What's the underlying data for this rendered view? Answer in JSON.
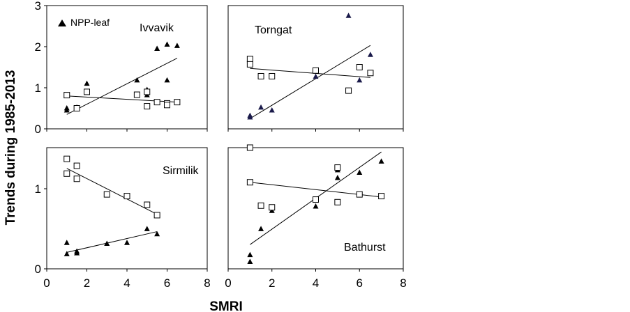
{
  "ylabel": "Trends during 1985-2013",
  "xlabel": "SMRI",
  "legend_label": "NPP-leaf",
  "x_ticks": [
    "0",
    "2",
    "4",
    "6",
    "8"
  ],
  "colors": {
    "leaf_marker": "#000000",
    "leaf_marker_torngat": "#1a1a4a",
    "square_marker": "#000000"
  },
  "chart_data": [
    {
      "type": "scatter",
      "site": "Ivvavik",
      "xlim": [
        0,
        8
      ],
      "ylim": [
        0,
        3
      ],
      "y_ticks": [
        "0",
        "1",
        "2",
        "3"
      ],
      "legend": "top-left",
      "series": [
        {
          "name": "NPP-leaf",
          "marker": "triangle",
          "x": [
            1,
            1,
            1.5,
            2,
            4.5,
            5,
            5,
            5.5,
            6,
            6,
            6.5
          ],
          "y": [
            0.45,
            0.5,
            0.52,
            1.1,
            1.18,
            0.95,
            0.82,
            1.95,
            2.05,
            1.18,
            2.02
          ],
          "fit": [
            [
              1,
              0.35
            ],
            [
              6.5,
              1.72
            ]
          ]
        },
        {
          "marker": "square",
          "x": [
            1,
            1.5,
            2,
            4.5,
            5,
            5,
            5.5,
            6,
            6,
            6.5
          ],
          "y": [
            0.82,
            0.5,
            0.9,
            0.83,
            0.9,
            0.55,
            0.65,
            0.62,
            0.58,
            0.65
          ],
          "fit": [
            [
              1,
              0.8
            ],
            [
              6.5,
              0.65
            ]
          ]
        }
      ]
    },
    {
      "type": "scatter",
      "site": "Torngat",
      "xlim": [
        0,
        8
      ],
      "ylim": [
        0,
        3
      ],
      "y_ticks": [],
      "series": [
        {
          "name": "NPP-leaf",
          "marker": "triangle",
          "x": [
            1,
            1,
            1.5,
            2,
            4,
            5.5,
            6,
            6.5
          ],
          "y": [
            0.28,
            0.32,
            0.52,
            0.45,
            1.27,
            2.75,
            1.18,
            1.8
          ],
          "fit": [
            [
              1,
              0.25
            ],
            [
              6.5,
              2.03
            ]
          ]
        },
        {
          "marker": "square",
          "x": [
            1,
            1,
            1.5,
            2,
            4,
            5.5,
            6,
            6.5
          ],
          "y": [
            1.7,
            1.57,
            1.28,
            1.28,
            1.42,
            0.93,
            1.5,
            1.36
          ],
          "fit": [
            [
              1,
              1.47
            ],
            [
              6.5,
              1.25
            ]
          ]
        }
      ]
    },
    {
      "type": "scatter",
      "site": "Sirmilik",
      "xlim": [
        0,
        8
      ],
      "ylim": [
        0,
        1.4
      ],
      "y_ticks": [
        "0",
        "1"
      ],
      "series": [
        {
          "name": "NPP-leaf",
          "marker": "triangle",
          "x": [
            1,
            1,
            1.5,
            1.5,
            3,
            4,
            5,
            5.5
          ],
          "y": [
            0.3,
            0.17,
            0.2,
            0.18,
            0.29,
            0.3,
            0.46,
            0.4
          ],
          "fit": [
            [
              1,
              0.19
            ],
            [
              5.5,
              0.43
            ]
          ]
        },
        {
          "marker": "square",
          "x": [
            1,
            1,
            1.5,
            1.5,
            3,
            4,
            5,
            5.5
          ],
          "y": [
            1.27,
            1.1,
            1.19,
            1.04,
            0.86,
            0.84,
            0.74,
            0.62
          ],
          "fit": [
            [
              1,
              1.16
            ],
            [
              5.5,
              0.63
            ]
          ]
        }
      ]
    },
    {
      "type": "scatter",
      "site": "Bathurst",
      "xlim": [
        0,
        8
      ],
      "ylim": [
        0,
        1.4
      ],
      "y_ticks": [],
      "series": [
        {
          "name": "NPP-leaf",
          "marker": "triangle",
          "x": [
            1,
            1,
            1.5,
            2,
            4,
            5,
            5,
            6,
            7
          ],
          "y": [
            0.16,
            0.08,
            0.46,
            0.67,
            0.72,
            1.14,
            1.05,
            1.11,
            1.24
          ],
          "fit": [
            [
              1,
              0.28
            ],
            [
              7,
              1.35
            ]
          ]
        },
        {
          "marker": "square",
          "x": [
            1,
            1,
            1.5,
            2,
            4,
            5,
            5,
            6,
            7
          ],
          "y": [
            1.4,
            1.0,
            0.73,
            0.71,
            0.8,
            0.77,
            1.17,
            0.86,
            0.84
          ],
          "fit": [
            [
              1,
              1.0
            ],
            [
              7,
              0.83
            ]
          ]
        }
      ]
    }
  ]
}
